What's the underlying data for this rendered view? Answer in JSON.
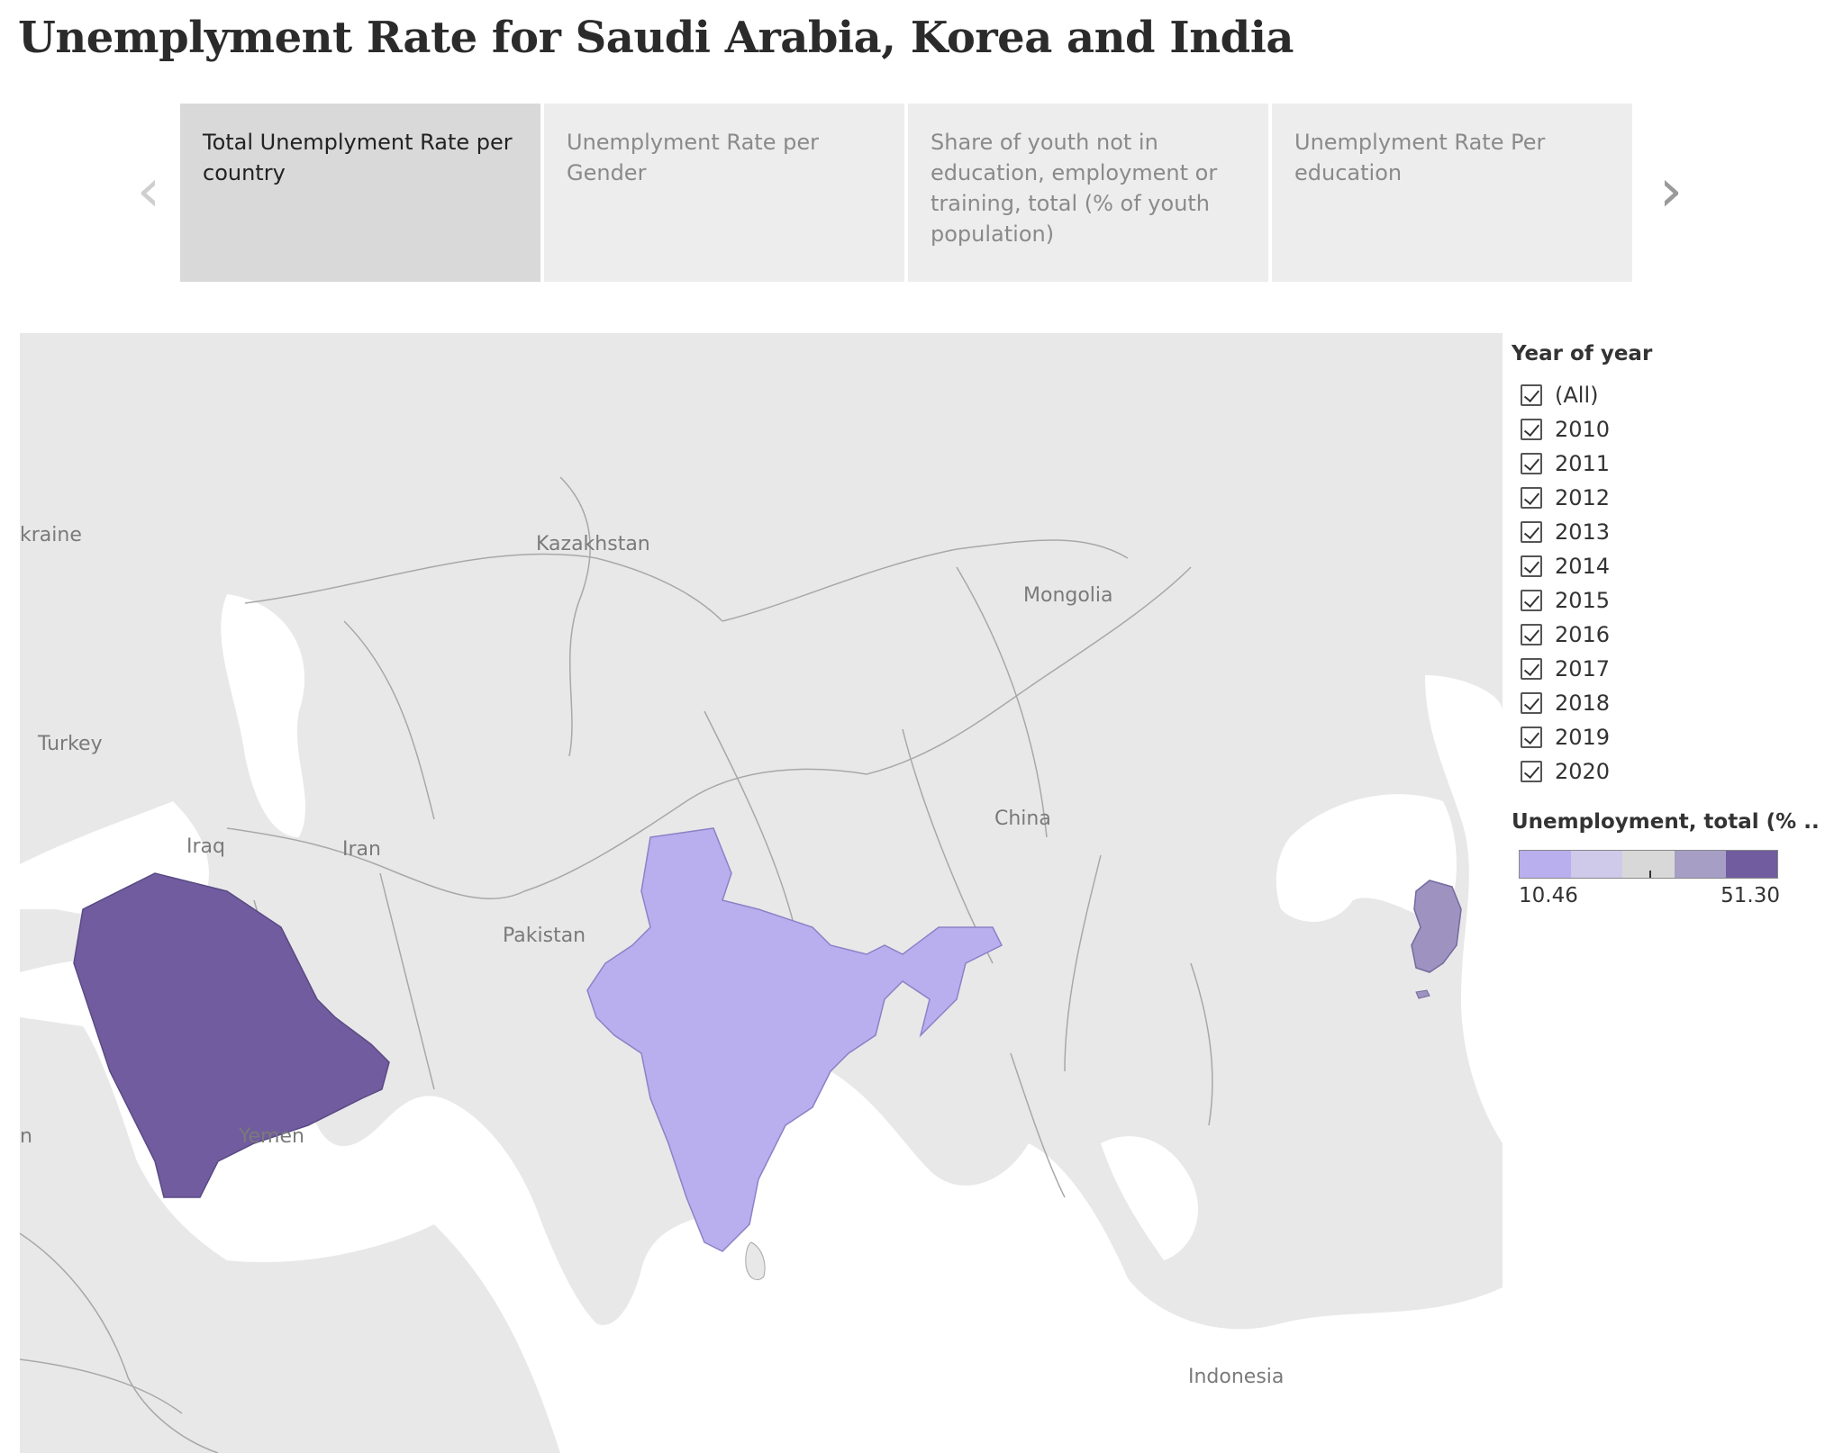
{
  "title": "Unemplyment Rate for Saudi Arabia, Korea and India",
  "story": {
    "points": [
      {
        "label": "Total Unemplyment Rate per country",
        "active": true
      },
      {
        "label": "Unemplyment Rate per Gender",
        "active": false
      },
      {
        "label": "Share of youth not in education, employment or training, total (% of youth population)",
        "active": false
      },
      {
        "label": "Unemplyment Rate Per education",
        "active": false
      }
    ]
  },
  "map": {
    "labels": {
      "ukraine": "kraine",
      "kazakhstan": "Kazakhstan",
      "mongolia": "Mongolia",
      "turkey": "Turkey",
      "iraq": "Iraq",
      "iran": "Iran",
      "china": "China",
      "pakistan": "Pakistan",
      "yemen": "Yemen",
      "sudan": "n",
      "indonesia": "Indonesia"
    },
    "highlighted": [
      {
        "country": "Saudi Arabia",
        "color": "#705c9e"
      },
      {
        "country": "India",
        "color": "#b9aeee"
      },
      {
        "country": "Korea",
        "color": "#9e93c0"
      }
    ],
    "land_color": "#e8e8e8",
    "sea_color": "#ffffff",
    "border_color": "#9e9e9e"
  },
  "filter": {
    "title": "Year of year",
    "items": [
      "(All)",
      "2010",
      "2011",
      "2012",
      "2013",
      "2014",
      "2015",
      "2016",
      "2017",
      "2018",
      "2019",
      "2020"
    ]
  },
  "color_legend": {
    "title": "Unemployment, total (% ..",
    "min_label": "10.46",
    "max_label": "51.30",
    "colors": [
      "#b9aeee",
      "#cfc9ea",
      "#d8d8d8",
      "#a79ec6",
      "#705c9e"
    ]
  }
}
